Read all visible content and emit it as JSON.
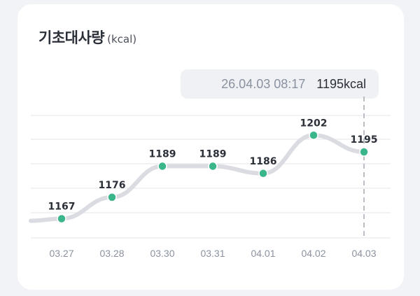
{
  "title": "기초대사량",
  "unit": "(kcal)",
  "tooltip": {
    "date": "26.04.03 08:17",
    "value": "1195kcal"
  },
  "colors": {
    "line": "#dadce1",
    "point": "#3bb58a",
    "grid": "#e9ebef",
    "guide": "#b9bdc5"
  },
  "chart_data": {
    "type": "line",
    "categories": [
      "03.27",
      "03.28",
      "03.30",
      "03.31",
      "04.01",
      "04.02",
      "04.03"
    ],
    "values": [
      1167,
      1176,
      1189,
      1189,
      1186,
      1202,
      1195
    ],
    "data_labels": [
      "1167",
      "1176",
      "1189",
      "1189",
      "1186",
      "1202",
      "1195"
    ],
    "ylim": [
      1156,
      1210
    ],
    "grid": true,
    "highlight_index": 6
  }
}
